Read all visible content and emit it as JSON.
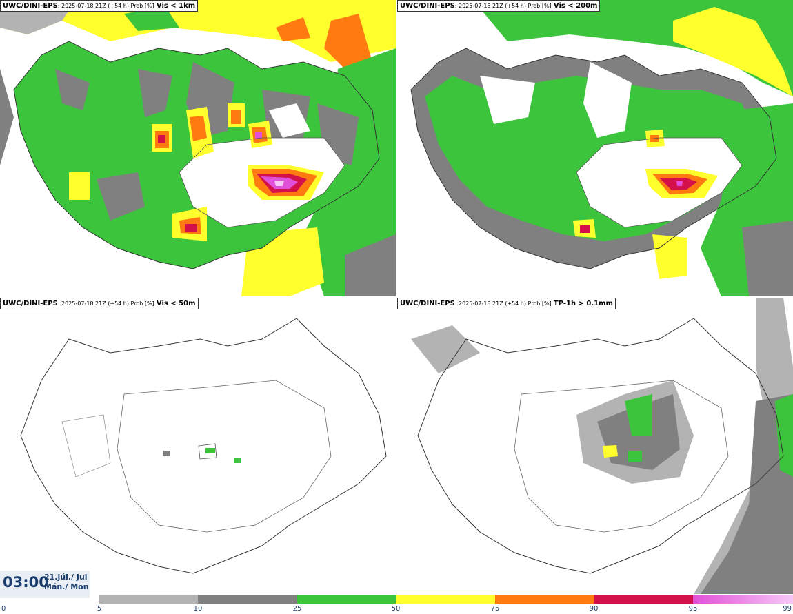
{
  "panels": [
    {
      "model": "UWC/DINI-EPS",
      "run": ": 2025-07-18 21Z (+54 h) Prob [%]",
      "variable": "Vis < 1km"
    },
    {
      "model": "UWC/DINI-EPS",
      "run": ": 2025-07-18 21Z (+54 h) Prob [%]",
      "variable": "Vis < 200m"
    },
    {
      "model": "UWC/DINI-EPS",
      "run": ": 2025-07-18 21Z (+54 h) Prob [%]",
      "variable": "Vis < 50m"
    },
    {
      "model": "UWC/DINI-EPS",
      "run": ": 2025-07-18 21Z (+54 h) Prob [%]",
      "variable": "TP-1h > 0.1mm"
    }
  ],
  "time": {
    "clock": "03:00",
    "date_line1": "21.júl./ Jul",
    "date_line2": "Mán./ Mon"
  },
  "colorbar": {
    "ticks": [
      "0",
      "5",
      "10",
      "25",
      "50",
      "75",
      "90",
      "95",
      "99"
    ],
    "colors": {
      "c5": "#b3b3b3",
      "c10": "#808080",
      "c25": "#3cc43c",
      "c50": "#ffff2e",
      "c75": "#ff7a10",
      "c90": "#d4104a",
      "c95": "#e050d8",
      "c99": "#f7c8f7"
    }
  }
}
